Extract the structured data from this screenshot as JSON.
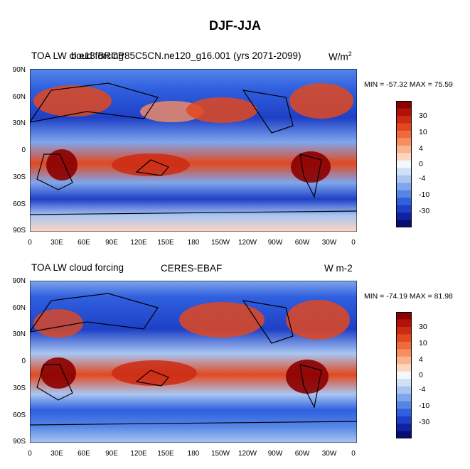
{
  "figure_title": "DJF-JJA",
  "lat_labels": [
    "90N",
    "60N",
    "30N",
    "0",
    "30S",
    "60S",
    "90S"
  ],
  "lon_labels": [
    "0",
    "30E",
    "60E",
    "90E",
    "120E",
    "150E",
    "180",
    "150W",
    "120W",
    "90W",
    "60W",
    "30W",
    "0"
  ],
  "panels": [
    {
      "left_title": "TOA LW cloud forcing",
      "overlap_title": "b.e13.BRCP85C5CN.ne120_g16.001 (yrs 2071-2099)",
      "center_title": "",
      "units_main": "W/m",
      "units_sup": "2",
      "minmax": "MIN = -57.32 MAX =  75.59"
    },
    {
      "left_title": "TOA LW cloud forcing",
      "overlap_title": "",
      "center_title": "CERES-EBAF",
      "units_main": "W m-2",
      "units_sup": "",
      "minmax": "MIN = -74.19 MAX =  81.98"
    }
  ],
  "colorbar": {
    "labels": [
      "30",
      "10",
      "4",
      "0",
      "-4",
      "-10",
      "-30"
    ],
    "colors": [
      "#8b0000",
      "#b01208",
      "#cc2a12",
      "#e2481f",
      "#f06a3c",
      "#f78e62",
      "#fbb48e",
      "#fdd6bf",
      "#f4f7fb",
      "#cfe0f7",
      "#a9c6f2",
      "#7fa6ec",
      "#5586e6",
      "#3060df",
      "#1e40c6",
      "#0f24a3",
      "#060e72"
    ]
  }
}
